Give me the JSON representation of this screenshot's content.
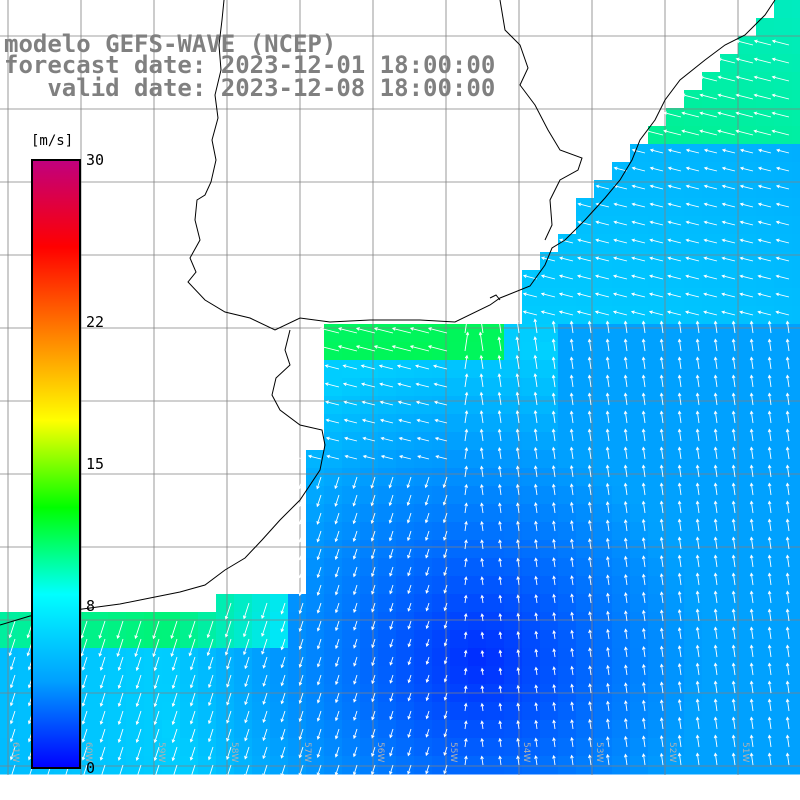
{
  "title": {
    "line1": "modelo GEFS-WAVE (NCEP)",
    "line2": "forecast date: 2023-12-01 18:00:00",
    "line3": "   valid date: 2023-12-08 18:00:00"
  },
  "colorbar": {
    "unit": "[m/s]",
    "min": 0,
    "max": 30,
    "ticks": [
      "30",
      "22",
      "15",
      "8",
      "0"
    ],
    "tick_values": [
      30,
      22,
      15,
      8,
      0
    ],
    "colors": [
      "#0000ff",
      "#00a0ff",
      "#00ffff",
      "#00ff00",
      "#ffff00",
      "#ff8000",
      "#ff0000",
      "#c0007f"
    ]
  },
  "map": {
    "longitude_labels": [
      "61W",
      "60W",
      "59W",
      "58W",
      "57W",
      "56W",
      "55W",
      "54W",
      "53W",
      "52W",
      "51W"
    ],
    "colors": {
      "land": "#ffffff",
      "coast": "#000000",
      "grid": "#808080",
      "arrow": "#ffffff"
    }
  }
}
